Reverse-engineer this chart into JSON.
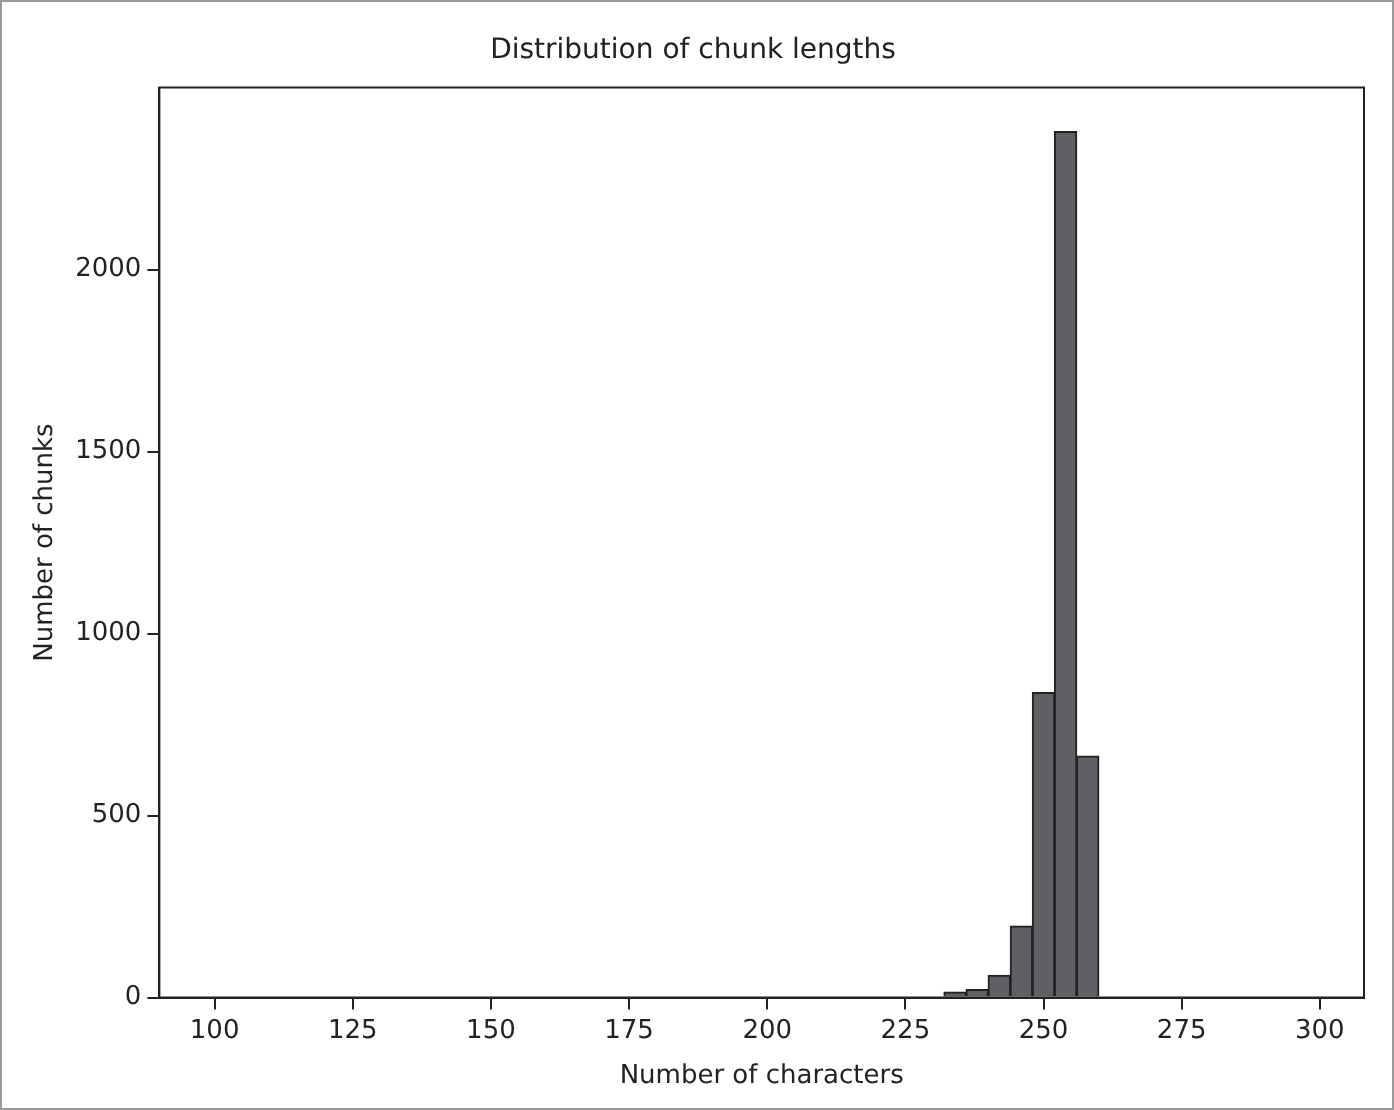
{
  "chart_data": {
    "type": "histogram",
    "title": "Distribution of chunk lengths",
    "xlabel": "Number of characters",
    "ylabel": "Number of chunks",
    "bins": [
      232,
      236,
      240,
      244,
      248,
      252,
      256,
      260
    ],
    "values": [
      15,
      22,
      61,
      196,
      838,
      2379,
      663
    ],
    "color": "#5f6064",
    "xlim": [
      90,
      308
    ],
    "xticks": [
      100,
      125,
      150,
      175,
      200,
      225,
      250,
      275,
      300
    ],
    "ylim": [
      0,
      2500
    ],
    "yticks": [
      0,
      500,
      1000,
      1500,
      2000
    ]
  }
}
